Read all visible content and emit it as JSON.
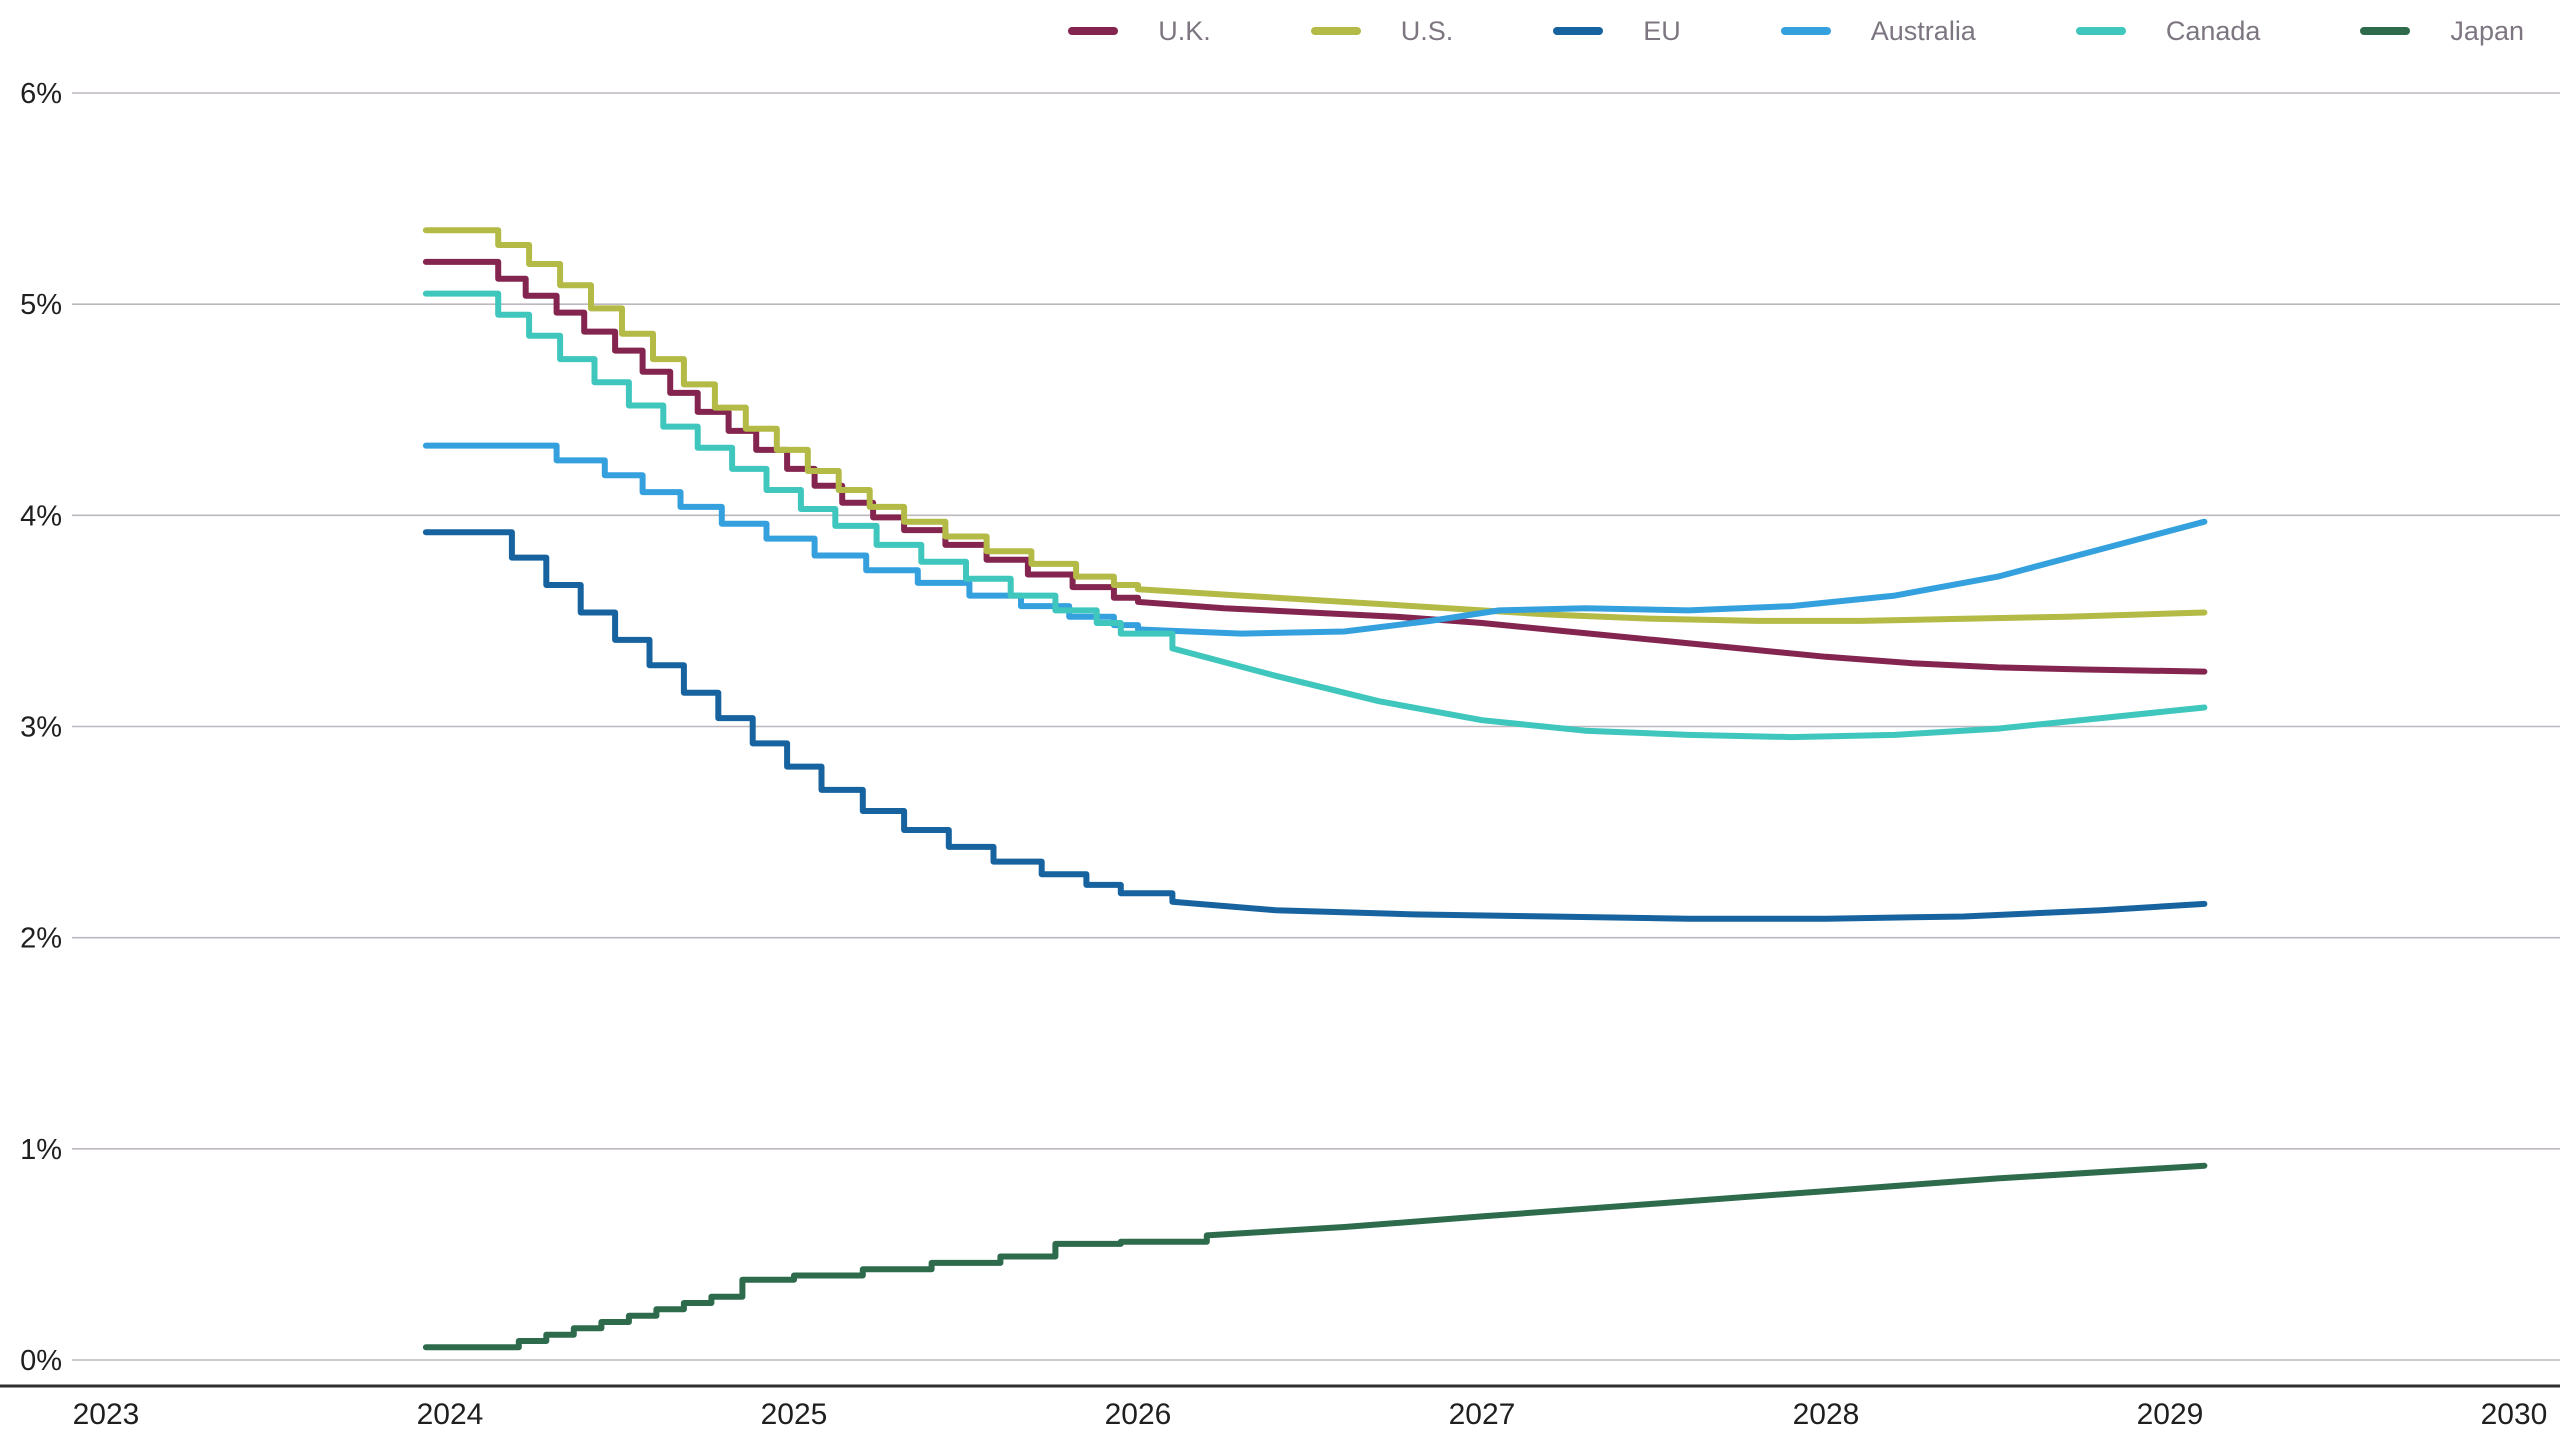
{
  "colors": {
    "background": "#ffffff",
    "axis_text": "#1f1f1f",
    "legend_text": "#7d7580",
    "gridline": "#bdb7c0",
    "axis_line": "#2e2e2e"
  },
  "chart_data": {
    "type": "line",
    "title": "",
    "xlabel": "",
    "ylabel": "",
    "grid": "horizontal",
    "legend_position": "top-right",
    "xlim": [
      2023,
      2030
    ],
    "ylim": [
      0,
      6
    ],
    "x_ticks": [
      {
        "value": 2023,
        "label": "2023"
      },
      {
        "value": 2024,
        "label": "2024"
      },
      {
        "value": 2025,
        "label": "2025"
      },
      {
        "value": 2026,
        "label": "2026"
      },
      {
        "value": 2027,
        "label": "2027"
      },
      {
        "value": 2028,
        "label": "2028"
      },
      {
        "value": 2029,
        "label": "2029"
      },
      {
        "value": 2030,
        "label": "2030"
      }
    ],
    "y_ticks": [
      {
        "value": 0,
        "label": "0%"
      },
      {
        "value": 1,
        "label": "1%"
      },
      {
        "value": 2,
        "label": "2%"
      },
      {
        "value": 3,
        "label": "3%"
      },
      {
        "value": 4,
        "label": "4%"
      },
      {
        "value": 5,
        "label": "5%"
      },
      {
        "value": 6,
        "label": "6%"
      }
    ],
    "series": [
      {
        "name": "U.K.",
        "color": "#83254f",
        "step_until": 2026.0,
        "points": [
          [
            2023.93,
            5.2
          ],
          [
            2024.06,
            5.2
          ],
          [
            2024.14,
            5.12
          ],
          [
            2024.22,
            5.04
          ],
          [
            2024.31,
            4.96
          ],
          [
            2024.39,
            4.87
          ],
          [
            2024.48,
            4.78
          ],
          [
            2024.56,
            4.68
          ],
          [
            2024.64,
            4.58
          ],
          [
            2024.72,
            4.49
          ],
          [
            2024.81,
            4.4
          ],
          [
            2024.89,
            4.31
          ],
          [
            2024.98,
            4.22
          ],
          [
            2025.06,
            4.14
          ],
          [
            2025.14,
            4.06
          ],
          [
            2025.23,
            3.99
          ],
          [
            2025.32,
            3.93
          ],
          [
            2025.44,
            3.86
          ],
          [
            2025.56,
            3.79
          ],
          [
            2025.68,
            3.72
          ],
          [
            2025.81,
            3.66
          ],
          [
            2025.93,
            3.61
          ],
          [
            2026.0,
            3.59
          ],
          [
            2026.25,
            3.56
          ],
          [
            2026.5,
            3.54
          ],
          [
            2026.75,
            3.52
          ],
          [
            2027.0,
            3.49
          ],
          [
            2027.25,
            3.45
          ],
          [
            2027.5,
            3.41
          ],
          [
            2027.75,
            3.37
          ],
          [
            2028.0,
            3.33
          ],
          [
            2028.25,
            3.3
          ],
          [
            2028.5,
            3.28
          ],
          [
            2028.75,
            3.27
          ],
          [
            2029.1,
            3.26
          ]
        ]
      },
      {
        "name": "U.S.",
        "color": "#b3ba45",
        "step_until": 2026.0,
        "points": [
          [
            2023.93,
            5.35
          ],
          [
            2024.06,
            5.35
          ],
          [
            2024.14,
            5.28
          ],
          [
            2024.23,
            5.19
          ],
          [
            2024.32,
            5.09
          ],
          [
            2024.41,
            4.98
          ],
          [
            2024.5,
            4.86
          ],
          [
            2024.59,
            4.74
          ],
          [
            2024.68,
            4.62
          ],
          [
            2024.77,
            4.51
          ],
          [
            2024.86,
            4.41
          ],
          [
            2024.95,
            4.31
          ],
          [
            2025.04,
            4.21
          ],
          [
            2025.13,
            4.12
          ],
          [
            2025.22,
            4.04
          ],
          [
            2025.32,
            3.97
          ],
          [
            2025.44,
            3.9
          ],
          [
            2025.56,
            3.83
          ],
          [
            2025.69,
            3.77
          ],
          [
            2025.82,
            3.71
          ],
          [
            2025.93,
            3.67
          ],
          [
            2026.0,
            3.65
          ],
          [
            2026.3,
            3.62
          ],
          [
            2026.6,
            3.59
          ],
          [
            2026.9,
            3.56
          ],
          [
            2027.2,
            3.53
          ],
          [
            2027.5,
            3.51
          ],
          [
            2027.8,
            3.5
          ],
          [
            2028.1,
            3.5
          ],
          [
            2028.4,
            3.51
          ],
          [
            2028.7,
            3.52
          ],
          [
            2029.1,
            3.54
          ]
        ]
      },
      {
        "name": "EU",
        "color": "#17639f",
        "step_until": 2026.0,
        "points": [
          [
            2023.93,
            3.92
          ],
          [
            2024.1,
            3.92
          ],
          [
            2024.18,
            3.8
          ],
          [
            2024.28,
            3.67
          ],
          [
            2024.38,
            3.54
          ],
          [
            2024.48,
            3.41
          ],
          [
            2024.58,
            3.29
          ],
          [
            2024.68,
            3.16
          ],
          [
            2024.78,
            3.04
          ],
          [
            2024.88,
            2.92
          ],
          [
            2024.98,
            2.81
          ],
          [
            2025.08,
            2.7
          ],
          [
            2025.2,
            2.6
          ],
          [
            2025.32,
            2.51
          ],
          [
            2025.45,
            2.43
          ],
          [
            2025.58,
            2.36
          ],
          [
            2025.72,
            2.3
          ],
          [
            2025.85,
            2.25
          ],
          [
            2025.95,
            2.21
          ],
          [
            2026.1,
            2.17
          ],
          [
            2026.4,
            2.13
          ],
          [
            2026.8,
            2.11
          ],
          [
            2027.2,
            2.1
          ],
          [
            2027.6,
            2.09
          ],
          [
            2028.0,
            2.09
          ],
          [
            2028.4,
            2.1
          ],
          [
            2028.8,
            2.13
          ],
          [
            2029.1,
            2.16
          ]
        ]
      },
      {
        "name": "Australia",
        "color": "#34a1de",
        "step_until": 2026.0,
        "points": [
          [
            2023.93,
            4.33
          ],
          [
            2024.2,
            4.33
          ],
          [
            2024.31,
            4.26
          ],
          [
            2024.45,
            4.19
          ],
          [
            2024.56,
            4.11
          ],
          [
            2024.67,
            4.04
          ],
          [
            2024.79,
            3.96
          ],
          [
            2024.92,
            3.89
          ],
          [
            2025.06,
            3.81
          ],
          [
            2025.21,
            3.74
          ],
          [
            2025.36,
            3.68
          ],
          [
            2025.51,
            3.62
          ],
          [
            2025.66,
            3.57
          ],
          [
            2025.8,
            3.52
          ],
          [
            2025.93,
            3.48
          ],
          [
            2026.0,
            3.46
          ],
          [
            2026.3,
            3.44
          ],
          [
            2026.6,
            3.45
          ],
          [
            2026.85,
            3.5
          ],
          [
            2027.05,
            3.55
          ],
          [
            2027.3,
            3.56
          ],
          [
            2027.6,
            3.55
          ],
          [
            2027.9,
            3.57
          ],
          [
            2028.2,
            3.62
          ],
          [
            2028.5,
            3.71
          ],
          [
            2028.8,
            3.84
          ],
          [
            2029.1,
            3.97
          ]
        ]
      },
      {
        "name": "Canada",
        "color": "#3fc6bd",
        "step_until": 2026.0,
        "points": [
          [
            2023.93,
            5.05
          ],
          [
            2024.06,
            5.05
          ],
          [
            2024.14,
            4.95
          ],
          [
            2024.23,
            4.85
          ],
          [
            2024.32,
            4.74
          ],
          [
            2024.42,
            4.63
          ],
          [
            2024.52,
            4.52
          ],
          [
            2024.62,
            4.42
          ],
          [
            2024.72,
            4.32
          ],
          [
            2024.82,
            4.22
          ],
          [
            2024.92,
            4.12
          ],
          [
            2025.02,
            4.03
          ],
          [
            2025.12,
            3.95
          ],
          [
            2025.24,
            3.86
          ],
          [
            2025.37,
            3.78
          ],
          [
            2025.5,
            3.7
          ],
          [
            2025.63,
            3.62
          ],
          [
            2025.76,
            3.55
          ],
          [
            2025.88,
            3.49
          ],
          [
            2025.95,
            3.44
          ],
          [
            2026.1,
            3.37
          ],
          [
            2026.4,
            3.24
          ],
          [
            2026.7,
            3.12
          ],
          [
            2027.0,
            3.03
          ],
          [
            2027.3,
            2.98
          ],
          [
            2027.6,
            2.96
          ],
          [
            2027.9,
            2.95
          ],
          [
            2028.2,
            2.96
          ],
          [
            2028.5,
            2.99
          ],
          [
            2028.8,
            3.04
          ],
          [
            2029.1,
            3.09
          ]
        ]
      },
      {
        "name": "Japan",
        "color": "#2e6b4d",
        "step_until": 2026.0,
        "points": [
          [
            2023.93,
            0.06
          ],
          [
            2024.12,
            0.06
          ],
          [
            2024.2,
            0.09
          ],
          [
            2024.28,
            0.12
          ],
          [
            2024.36,
            0.15
          ],
          [
            2024.44,
            0.18
          ],
          [
            2024.52,
            0.21
          ],
          [
            2024.6,
            0.24
          ],
          [
            2024.68,
            0.27
          ],
          [
            2024.76,
            0.3
          ],
          [
            2024.85,
            0.38
          ],
          [
            2025.0,
            0.4
          ],
          [
            2025.2,
            0.43
          ],
          [
            2025.4,
            0.46
          ],
          [
            2025.6,
            0.49
          ],
          [
            2025.76,
            0.55
          ],
          [
            2025.95,
            0.56
          ],
          [
            2026.2,
            0.59
          ],
          [
            2026.6,
            0.63
          ],
          [
            2027.0,
            0.68
          ],
          [
            2027.5,
            0.74
          ],
          [
            2028.0,
            0.8
          ],
          [
            2028.5,
            0.86
          ],
          [
            2029.1,
            0.92
          ]
        ]
      }
    ]
  }
}
